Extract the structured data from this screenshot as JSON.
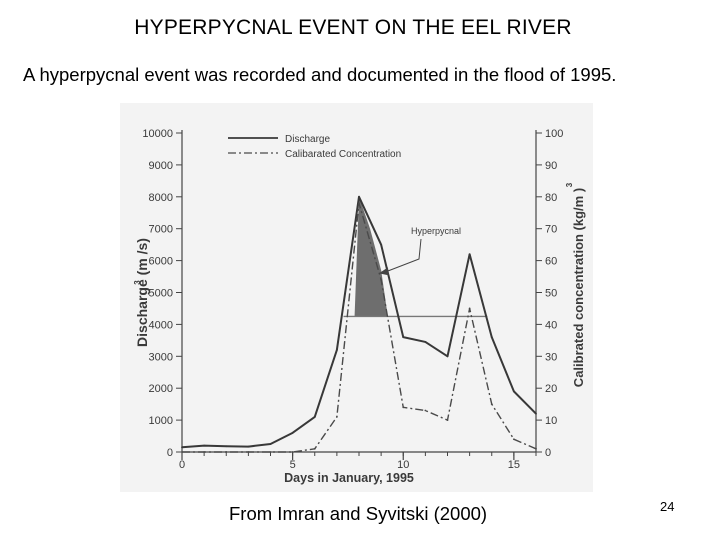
{
  "slide": {
    "title": "HYPERPYCNAL EVENT ON THE EEL RIVER",
    "subtitle": "A hyperpycnal event was recorded and documented in the flood of 1995.",
    "credit": "From Imran and Syvitski (2000)",
    "page_number": "24"
  },
  "chart_data": {
    "type": "line",
    "title": "",
    "xlabel": "Days in January, 1995",
    "ylabel": "Discharge (m /s)",
    "ylabel_superscript": "3",
    "y2label": "Calibrated concentration (kg/m )",
    "y2label_superscript": "3",
    "xlim": [
      0,
      16
    ],
    "ylim": [
      0,
      10000
    ],
    "y2lim": [
      0,
      100
    ],
    "x_ticks": [
      0,
      5,
      10,
      15
    ],
    "y_ticks": [
      0,
      1000,
      2000,
      3000,
      4000,
      5000,
      6000,
      7000,
      8000,
      9000,
      10000
    ],
    "y2_ticks": [
      0,
      10,
      20,
      30,
      40,
      50,
      60,
      70,
      80,
      90,
      100
    ],
    "grid": false,
    "legend": "top-left",
    "series": [
      {
        "name": "Discharge",
        "axis": "left",
        "style": "solid",
        "x": [
          0,
          1,
          2,
          3,
          4,
          5,
          6,
          7,
          8,
          9,
          10,
          11,
          12,
          13,
          14,
          15,
          16
        ],
        "values": [
          150,
          200,
          180,
          170,
          250,
          600,
          1100,
          3200,
          8000,
          6500,
          3600,
          3450,
          3000,
          6200,
          3600,
          1900,
          1200
        ]
      },
      {
        "name": "Calibarated Concentration",
        "axis": "right",
        "style": "dash-dot",
        "x": [
          0,
          1,
          2,
          3,
          4,
          5,
          6,
          7,
          8,
          9,
          10,
          11,
          12,
          13,
          14,
          15,
          16
        ],
        "values": [
          0,
          0,
          0,
          0,
          0,
          0,
          1,
          11,
          78,
          54,
          14,
          13,
          10,
          45,
          15,
          4,
          1
        ]
      }
    ],
    "threshold": {
      "axis": "left",
      "value": 4250,
      "x_range": [
        7.3,
        13.8
      ]
    },
    "hyperpycnal_region": {
      "x": [
        7.8,
        8,
        8.5,
        9,
        9.3
      ],
      "values": [
        4250,
        8000,
        7000,
        5700,
        4250
      ]
    },
    "annotation": {
      "text": "Hyperpycnal",
      "points_to": {
        "x": 8.9,
        "y": 5600
      }
    },
    "colors": {
      "discharge": "#383838",
      "concentration": "#4a4a4a",
      "threshold": "#777777",
      "region_fill": "#6e6e6e",
      "plot_background": "#f3f3f3"
    }
  }
}
